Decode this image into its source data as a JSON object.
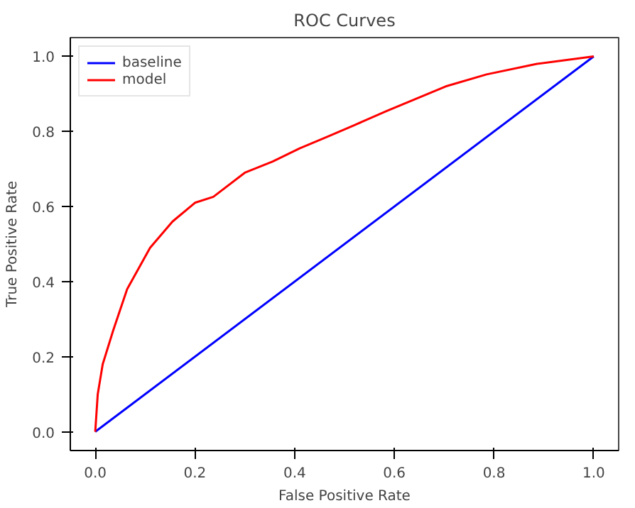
{
  "chart_data": {
    "type": "line",
    "title": "ROC Curves",
    "xlabel": "False Positive Rate",
    "ylabel": "True Positive Rate",
    "xlim": [
      -0.05,
      1.05
    ],
    "ylim": [
      -0.05,
      1.05
    ],
    "xticks": [
      {
        "value": 0,
        "label": "0.0"
      },
      0.2,
      0.4,
      0.6,
      0.8,
      {
        "value": 1,
        "label": "1.0"
      }
    ],
    "yticks": [
      {
        "value": 0,
        "label": "0.0"
      },
      0.2,
      0.4,
      0.6,
      0.8,
      {
        "value": 1,
        "label": "1.0"
      }
    ],
    "grid": false,
    "legend": "top left",
    "series": [
      {
        "name": "baseline",
        "color": "#0000ff",
        "x": [
          0,
          1
        ],
        "values": [
          0,
          1
        ]
      },
      {
        "name": "model",
        "color": "#ff0000",
        "x": [
          0,
          0.005,
          0.015,
          0.036,
          0.064,
          0.11,
          0.155,
          0.2,
          0.237,
          0.3,
          0.356,
          0.41,
          0.466,
          0.52,
          0.584,
          0.703,
          0.785,
          0.886,
          1
        ],
        "values": [
          0,
          0.1,
          0.18,
          0.27,
          0.38,
          0.49,
          0.56,
          0.61,
          0.626,
          0.69,
          0.72,
          0.755,
          0.786,
          0.817,
          0.854,
          0.92,
          0.952,
          0.98,
          1
        ]
      }
    ]
  }
}
